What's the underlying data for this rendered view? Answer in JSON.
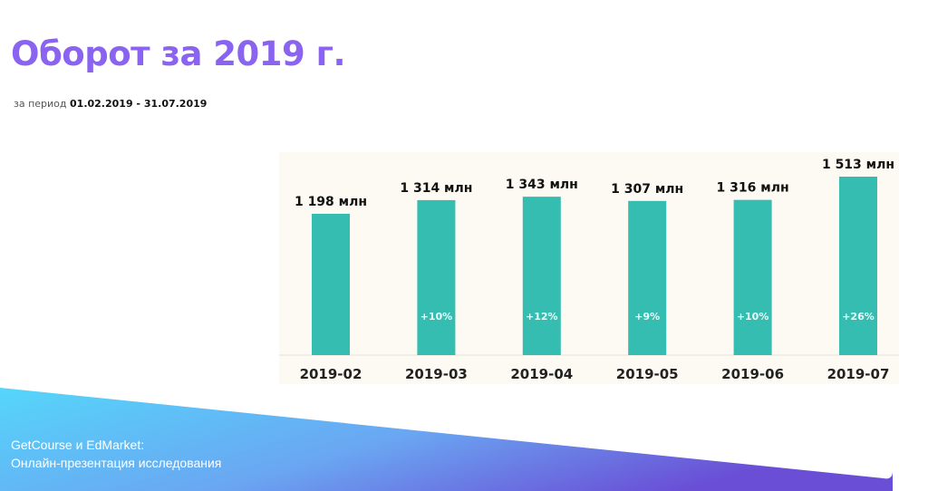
{
  "header": {
    "title": "Оборот за 2019 г.",
    "period_prefix": "за период",
    "period_range": "01.02.2019 - 31.07.2019"
  },
  "chart_data": {
    "type": "bar",
    "title": "Оборот за 2019 г.",
    "xlabel": "",
    "ylabel": "",
    "unit": "млн",
    "categories": [
      "2019-02",
      "2019-03",
      "2019-04",
      "2019-05",
      "2019-06",
      "2019-07"
    ],
    "values": [
      1198,
      1314,
      1343,
      1307,
      1316,
      1513
    ],
    "value_labels": [
      "1 198 млн",
      "1 314 млн",
      "1 343 млн",
      "1 307 млн",
      "1 316 млн",
      "1 513 млн"
    ],
    "growth_labels": [
      "",
      "+10%",
      "+12%",
      "+9%",
      "+10%",
      "+26%"
    ],
    "ylim": [
      0,
      1513
    ],
    "grid": false,
    "colors": {
      "bar": "#35bdb1",
      "panel": "#fcfaf2"
    }
  },
  "footer": {
    "line1": "GetCourse и EdMarket:",
    "line2": "Онлайн-презентация исследования",
    "gradient": [
      "#55d6fa",
      "#6b8ff0",
      "#6a4fd6"
    ]
  }
}
